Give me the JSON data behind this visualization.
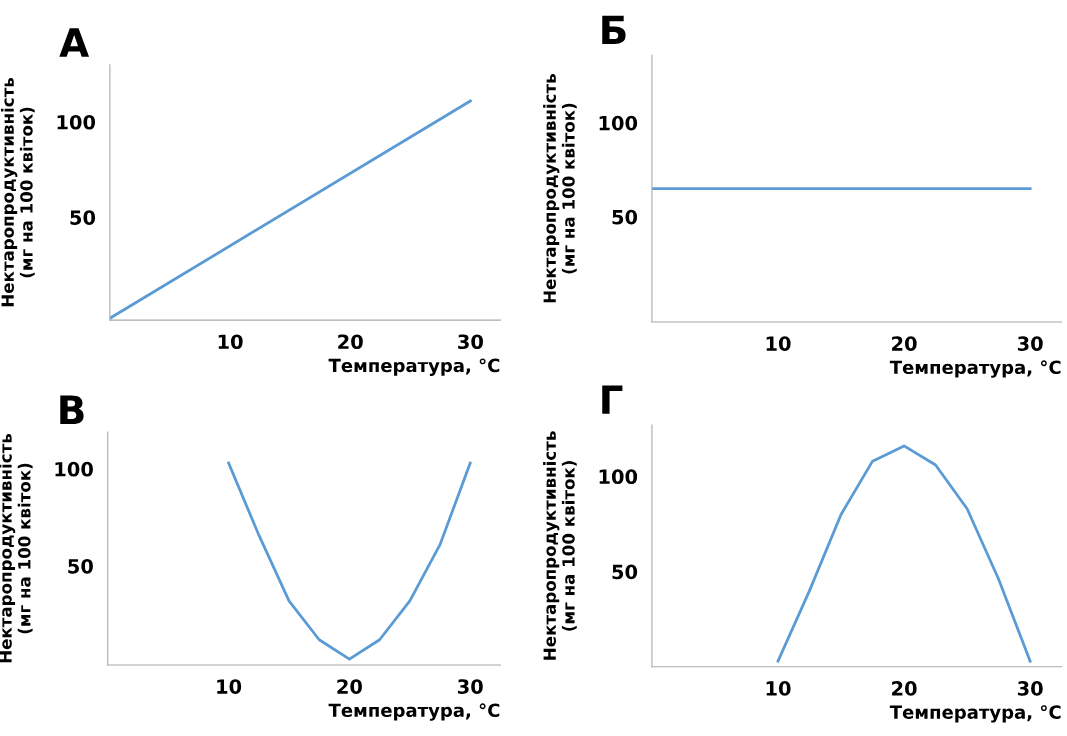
{
  "chart_data": [
    {
      "type": "line",
      "title": "А",
      "xlabel": "Температура, °C",
      "ylabel": "Нектаропродуктивність\n(мг на 100 квіток)",
      "x": [
        0,
        30
      ],
      "values": [
        -3,
        111
      ],
      "color": "#5b9bd5",
      "xlim": [
        0,
        32.5
      ],
      "ylim": [
        -4,
        130
      ],
      "xticks": [
        10,
        20,
        30
      ],
      "yticks": [
        50,
        100
      ]
    },
    {
      "type": "line",
      "title": "Б",
      "xlabel": "Температура, °C",
      "ylabel": "Нектаропродуктивність\n(мг на 100 квіток)",
      "x": [
        0,
        30
      ],
      "values": [
        65,
        65
      ],
      "color": "#5b9bd5",
      "xlim": [
        0,
        32.5
      ],
      "ylim": [
        -6,
        136
      ],
      "xticks": [
        10,
        20,
        30
      ],
      "yticks": [
        50,
        100
      ]
    },
    {
      "type": "line",
      "title": "В",
      "xlabel": "Температура, °C",
      "ylabel": "Нектаропродуктивність\n(мг на 100 квіток)",
      "x": [
        10,
        12.5,
        15,
        17.5,
        20,
        22.5,
        25,
        27.5,
        30
      ],
      "values": [
        103,
        66,
        32,
        12,
        2,
        12,
        32,
        61,
        103
      ],
      "color": "#5b9bd5",
      "xlim": [
        0,
        32.5
      ],
      "ylim": [
        -1,
        119
      ],
      "xticks": [
        10,
        20,
        30
      ],
      "yticks": [
        50,
        100
      ]
    },
    {
      "type": "line",
      "title": "Г",
      "xlabel": "Температура, °C",
      "ylabel": "Нектаропродуктивність\n(мг на 100 квіток)",
      "x": [
        10,
        12.5,
        15,
        17.5,
        20,
        22.5,
        25,
        27.5,
        30
      ],
      "values": [
        3,
        40,
        80,
        108,
        116,
        106,
        83,
        46,
        3
      ],
      "color": "#5b9bd5",
      "xlim": [
        0,
        32.5
      ],
      "ylim": [
        0,
        127
      ],
      "xticks": [
        10,
        20,
        30
      ],
      "yticks": [
        50,
        100
      ]
    }
  ]
}
